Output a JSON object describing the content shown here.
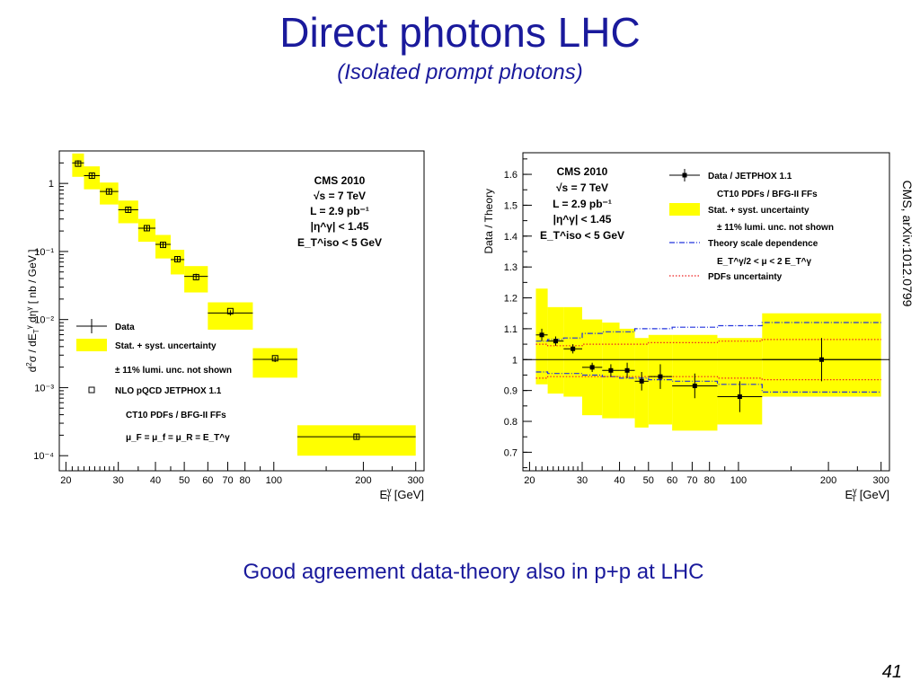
{
  "slide": {
    "title": "Direct photons LHC",
    "subtitle": "(Isolated prompt photons)",
    "caption": "Good agreement data-theory also in p+p at LHC",
    "page_number": "41",
    "reference": "CMS, arXiv:1012.0799"
  },
  "chart_data": [
    {
      "type": "scatter",
      "xscale": "log",
      "yscale": "log",
      "xlim": [
        19,
        320
      ],
      "ylim": [
        6e-05,
        3
      ],
      "xlabel": "E_T^γ [GeV]",
      "ylabel": "d²σ / dE_T^γ dη^γ [ nb / GeV ]",
      "xticks": [
        20,
        30,
        40,
        50,
        60,
        70,
        80,
        100,
        200,
        300
      ],
      "yticks": [
        {
          "value": 1,
          "label": "1"
        },
        {
          "value": 0.1,
          "label": "10⁻¹"
        },
        {
          "value": 0.01,
          "label": "10⁻²"
        },
        {
          "value": 0.001,
          "label": "10⁻³"
        },
        {
          "value": 0.0001,
          "label": "10⁻⁴"
        }
      ],
      "annotations": [
        "CMS 2010",
        "√s = 7 TeV",
        "L = 2.9 pb⁻¹",
        "|η^γ| < 1.45",
        "E_T^iso < 5 GeV"
      ],
      "legend": [
        {
          "label": "Data",
          "marker": "cross"
        },
        {
          "label": "Stat. + syst. uncertainty",
          "marker": "yellow-box"
        },
        {
          "label": "± 11% lumi. unc. not shown",
          "marker": "none"
        },
        {
          "label": "NLO pQCD JETPHOX 1.1",
          "marker": "open-square"
        },
        {
          "label": "CT10 PDFs / BFG-II FFs",
          "marker": "none"
        },
        {
          "label": "μ_F = μ_f = μ_R = E_T^γ",
          "marker": "none"
        }
      ],
      "bins": [
        {
          "xlo": 21,
          "xhi": 23,
          "data": 2.0,
          "theory": 1.95,
          "unc": 0.25
        },
        {
          "xlo": 23,
          "xhi": 26,
          "data": 1.3,
          "theory": 1.3,
          "unc": 0.16
        },
        {
          "xlo": 26,
          "xhi": 30,
          "data": 0.76,
          "theory": 0.76,
          "unc": 0.09
        },
        {
          "xlo": 30,
          "xhi": 35,
          "data": 0.41,
          "theory": 0.41,
          "unc": 0.05
        },
        {
          "xlo": 35,
          "xhi": 40,
          "data": 0.22,
          "theory": 0.22,
          "unc": 0.027
        },
        {
          "xlo": 40,
          "xhi": 45,
          "data": 0.127,
          "theory": 0.125,
          "unc": 0.016
        },
        {
          "xlo": 45,
          "xhi": 50,
          "data": 0.076,
          "theory": 0.077,
          "unc": 0.01
        },
        {
          "xlo": 50,
          "xhi": 60,
          "data": 0.043,
          "theory": 0.042,
          "unc": 0.006
        },
        {
          "xlo": 60,
          "xhi": 85,
          "data": 0.0125,
          "theory": 0.0133,
          "unc": 0.0018
        },
        {
          "xlo": 85,
          "xhi": 120,
          "data": 0.0026,
          "theory": 0.0027,
          "unc": 0.0004
        },
        {
          "xlo": 120,
          "xhi": 300,
          "data": 0.00019,
          "theory": 0.00019,
          "unc": 3e-05
        }
      ]
    },
    {
      "type": "scatter",
      "xscale": "log",
      "xlim": [
        19,
        320
      ],
      "ylim": [
        0.64,
        1.67
      ],
      "xlabel": "E_T^γ [GeV]",
      "ylabel": "Data / Theory",
      "xticks": [
        20,
        30,
        40,
        50,
        60,
        70,
        80,
        100,
        200,
        300
      ],
      "yticks": [
        0.7,
        0.8,
        0.9,
        1,
        1.1,
        1.2,
        1.3,
        1.4,
        1.5,
        1.6
      ],
      "annotations": [
        "CMS 2010",
        "√s = 7 TeV",
        "L = 2.9 pb⁻¹",
        "|η^γ| < 1.45",
        "E_T^iso < 5 GeV"
      ],
      "legend": [
        {
          "label": "Data / JETPHOX 1.1",
          "marker": "filled-square"
        },
        {
          "label": "CT10 PDFs / BFG-II FFs",
          "marker": "none"
        },
        {
          "label": "Stat. + syst. uncertainty",
          "marker": "yellow-box"
        },
        {
          "label": "± 11% lumi. unc. not shown",
          "marker": "none"
        },
        {
          "label": "Theory scale dependence",
          "marker": "blue-dashdot"
        },
        {
          "label": "E_T^γ/2 < μ < 2 E_T^γ",
          "marker": "none"
        },
        {
          "label": "PDFs uncertainty",
          "marker": "red-dotted"
        }
      ],
      "bins": [
        {
          "xlo": 21,
          "xhi": 23,
          "ratio": 1.08,
          "err": 0.02,
          "band": [
            0.92,
            1.23
          ],
          "scale": [
            0.96,
            1.06
          ],
          "pdf": [
            0.94,
            1.05
          ]
        },
        {
          "xlo": 23,
          "xhi": 26,
          "ratio": 1.06,
          "err": 0.015,
          "band": [
            0.89,
            1.17
          ],
          "scale": [
            0.955,
            1.065
          ],
          "pdf": [
            0.945,
            1.045
          ]
        },
        {
          "xlo": 26,
          "xhi": 30,
          "ratio": 1.035,
          "err": 0.015,
          "band": [
            0.88,
            1.17
          ],
          "scale": [
            0.955,
            1.07
          ],
          "pdf": [
            0.945,
            1.045
          ]
        },
        {
          "xlo": 30,
          "xhi": 35,
          "ratio": 0.975,
          "err": 0.015,
          "band": [
            0.82,
            1.13
          ],
          "scale": [
            0.95,
            1.085
          ],
          "pdf": [
            0.945,
            1.05
          ]
        },
        {
          "xlo": 35,
          "xhi": 40,
          "ratio": 0.965,
          "err": 0.02,
          "band": [
            0.81,
            1.12
          ],
          "scale": [
            0.945,
            1.09
          ],
          "pdf": [
            0.945,
            1.05
          ]
        },
        {
          "xlo": 40,
          "xhi": 45,
          "ratio": 0.965,
          "err": 0.025,
          "band": [
            0.81,
            1.1
          ],
          "scale": [
            0.94,
            1.09
          ],
          "pdf": [
            0.945,
            1.05
          ]
        },
        {
          "xlo": 45,
          "xhi": 50,
          "ratio": 0.93,
          "err": 0.03,
          "band": [
            0.78,
            1.07
          ],
          "scale": [
            0.94,
            1.1
          ],
          "pdf": [
            0.945,
            1.05
          ]
        },
        {
          "xlo": 50,
          "xhi": 60,
          "ratio": 0.945,
          "err": 0.04,
          "band": [
            0.79,
            1.08
          ],
          "scale": [
            0.935,
            1.1
          ],
          "pdf": [
            0.945,
            1.055
          ]
        },
        {
          "xlo": 60,
          "xhi": 85,
          "ratio": 0.915,
          "err": 0.04,
          "band": [
            0.77,
            1.08
          ],
          "scale": [
            0.93,
            1.105
          ],
          "pdf": [
            0.945,
            1.055
          ]
        },
        {
          "xlo": 85,
          "xhi": 120,
          "ratio": 0.88,
          "err": 0.05,
          "band": [
            0.79,
            1.07
          ],
          "scale": [
            0.92,
            1.11
          ],
          "pdf": [
            0.94,
            1.06
          ]
        },
        {
          "xlo": 120,
          "xhi": 300,
          "ratio": 1.0,
          "err": 0.07,
          "band": [
            0.88,
            1.15
          ],
          "scale": [
            0.895,
            1.12
          ],
          "pdf": [
            0.935,
            1.065
          ]
        }
      ]
    }
  ]
}
